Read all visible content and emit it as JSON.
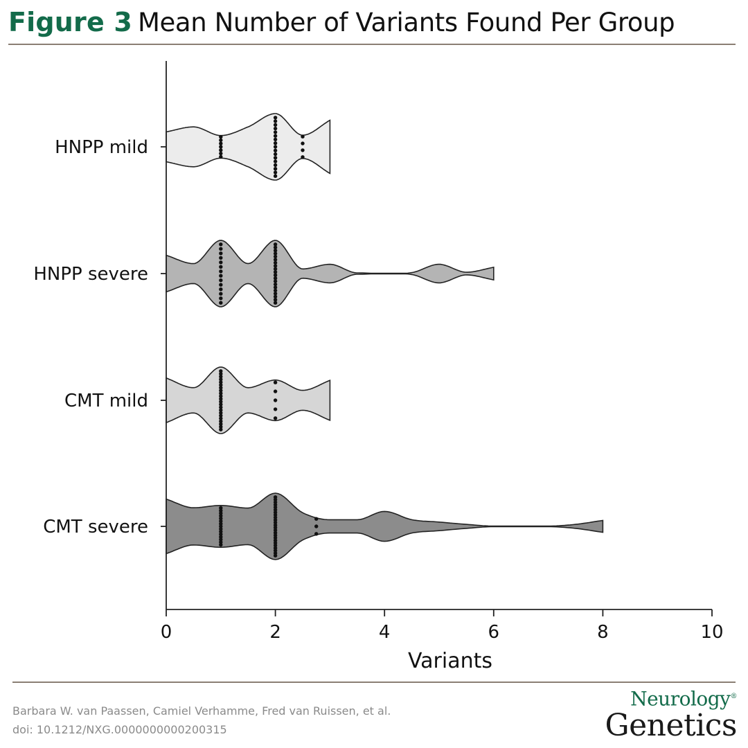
{
  "header": {
    "figure_label": "Figure 3",
    "figure_title": "Mean Number of Variants Found Per Group"
  },
  "footer": {
    "authors": "Barbara W. van Paassen, Camiel Verhamme, Fred van Ruissen, et al.",
    "doi": "doi: 10.1212/NXG.0000000000200315"
  },
  "logo": {
    "line1": "Neurology",
    "registered": "®",
    "line2": "Genetics"
  },
  "chart_data": {
    "type": "violin",
    "title": "",
    "xlabel": "Variants",
    "ylabel": "",
    "xlim": [
      0,
      10
    ],
    "xticks": [
      0,
      2,
      4,
      6,
      8,
      10
    ],
    "grid": false,
    "legend": "none",
    "categories": [
      "HNPP mild",
      "HNPP severe",
      "CMT mild",
      "CMT severe"
    ],
    "series": [
      {
        "name": "HNPP mild",
        "color": "#ececec",
        "density": [
          [
            0,
            0.45
          ],
          [
            0.5,
            0.6
          ],
          [
            1,
            0.34
          ],
          [
            1.5,
            0.6
          ],
          [
            2,
            1.0
          ],
          [
            2.5,
            0.35
          ],
          [
            3,
            0.8
          ]
        ],
        "dots": [
          {
            "x": 1,
            "n": 7
          },
          {
            "x": 2,
            "n": 17
          },
          {
            "x": 2.5,
            "n": 4
          }
        ]
      },
      {
        "name": "HNPP severe",
        "color": "#b4b4b4",
        "density": [
          [
            0,
            0.55
          ],
          [
            0.5,
            0.3
          ],
          [
            1,
            1.0
          ],
          [
            1.5,
            0.3
          ],
          [
            2,
            1.0
          ],
          [
            2.5,
            0.14
          ],
          [
            3,
            0.28
          ],
          [
            3.5,
            0.02
          ],
          [
            4.5,
            0.03
          ],
          [
            5,
            0.28
          ],
          [
            5.5,
            0.04
          ],
          [
            6,
            0.19
          ]
        ],
        "dots": [
          {
            "x": 1,
            "n": 14
          },
          {
            "x": 2,
            "n": 20
          }
        ]
      },
      {
        "name": "CMT mild",
        "color": "#d6d6d6",
        "density": [
          [
            0,
            0.67
          ],
          [
            0.5,
            0.38
          ],
          [
            1,
            1.0
          ],
          [
            1.5,
            0.38
          ],
          [
            2,
            0.61
          ],
          [
            2.5,
            0.3
          ],
          [
            3,
            0.6
          ]
        ],
        "dots": [
          {
            "x": 1,
            "n": 22
          },
          {
            "x": 2,
            "n": 5
          }
        ]
      },
      {
        "name": "CMT severe",
        "color": "#8c8c8c",
        "density": [
          [
            0,
            0.82
          ],
          [
            0.5,
            0.56
          ],
          [
            1,
            0.63
          ],
          [
            1.5,
            0.55
          ],
          [
            2,
            1.0
          ],
          [
            2.5,
            0.41
          ],
          [
            3,
            0.2
          ],
          [
            3.5,
            0.2
          ],
          [
            4,
            0.45
          ],
          [
            4.5,
            0.2
          ],
          [
            5,
            0.13
          ],
          [
            5.5,
            0.06
          ],
          [
            6,
            0.01
          ],
          [
            7,
            0.01
          ],
          [
            7.5,
            0.06
          ],
          [
            8,
            0.18
          ]
        ],
        "dots": [
          {
            "x": 1,
            "n": 15
          },
          {
            "x": 2,
            "n": 24
          },
          {
            "x": 2.75,
            "n": 3
          }
        ]
      }
    ]
  }
}
